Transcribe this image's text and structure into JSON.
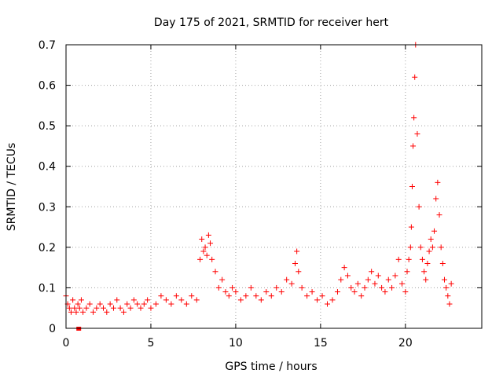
{
  "chart_data": {
    "type": "scatter",
    "title": "Day 175 of 2021, SRMTID for receiver hert",
    "xlabel": "GPS time / hours",
    "ylabel": "SRMTID / TECUs",
    "xlim": [
      0,
      24.5
    ],
    "ylim": [
      0,
      0.7
    ],
    "xticks": [
      0,
      5,
      10,
      15,
      20
    ],
    "yticks": [
      0,
      0.1,
      0.2,
      0.3,
      0.4,
      0.5,
      0.6,
      0.7
    ],
    "xtick_labels": [
      "0",
      "5",
      "10",
      "15",
      "20"
    ],
    "ytick_labels": [
      "0",
      "0.1",
      "0.2",
      "0.3",
      "0.4",
      "0.5",
      "0.6",
      "0.7"
    ],
    "grid": true,
    "marker": "+",
    "series": [
      {
        "name": "SRMTID",
        "color": "#ff0000",
        "x": [
          0.0,
          0.1,
          0.2,
          0.3,
          0.4,
          0.5,
          0.6,
          0.7,
          0.8,
          0.9,
          1.0,
          1.2,
          1.4,
          1.6,
          1.8,
          2.0,
          2.2,
          2.4,
          2.6,
          2.8,
          3.0,
          3.2,
          3.4,
          3.6,
          3.8,
          4.0,
          4.2,
          4.4,
          4.6,
          4.8,
          5.0,
          5.3,
          5.6,
          5.9,
          6.2,
          6.5,
          6.8,
          7.1,
          7.4,
          7.7,
          7.9,
          8.0,
          8.1,
          8.2,
          8.3,
          8.4,
          8.5,
          8.6,
          8.8,
          9.0,
          9.2,
          9.4,
          9.6,
          9.8,
          10.0,
          10.3,
          10.6,
          10.9,
          11.2,
          11.5,
          11.8,
          12.1,
          12.4,
          12.7,
          13.0,
          13.3,
          13.5,
          13.6,
          13.7,
          13.9,
          14.2,
          14.5,
          14.8,
          15.1,
          15.4,
          15.7,
          16.0,
          16.2,
          16.4,
          16.6,
          16.8,
          17.0,
          17.2,
          17.4,
          17.6,
          17.8,
          18.0,
          18.2,
          18.4,
          18.6,
          18.8,
          19.0,
          19.2,
          19.4,
          19.6,
          19.8,
          20.0,
          20.1,
          20.2,
          20.3,
          20.35,
          20.4,
          20.45,
          20.5,
          20.55,
          20.6,
          20.7,
          20.8,
          20.9,
          21.0,
          21.1,
          21.2,
          21.3,
          21.4,
          21.5,
          21.6,
          21.7,
          21.8,
          21.9,
          22.0,
          22.1,
          22.2,
          22.3,
          22.4,
          22.5,
          22.6,
          22.7
        ],
        "y": [
          0.08,
          0.06,
          0.05,
          0.04,
          0.07,
          0.05,
          0.04,
          0.06,
          0.05,
          0.07,
          0.04,
          0.05,
          0.06,
          0.04,
          0.05,
          0.06,
          0.05,
          0.04,
          0.06,
          0.05,
          0.07,
          0.05,
          0.04,
          0.06,
          0.05,
          0.07,
          0.06,
          0.05,
          0.06,
          0.07,
          0.05,
          0.06,
          0.08,
          0.07,
          0.06,
          0.08,
          0.07,
          0.06,
          0.08,
          0.07,
          0.17,
          0.22,
          0.19,
          0.2,
          0.18,
          0.23,
          0.21,
          0.17,
          0.14,
          0.1,
          0.12,
          0.09,
          0.08,
          0.1,
          0.09,
          0.07,
          0.08,
          0.1,
          0.08,
          0.07,
          0.09,
          0.08,
          0.1,
          0.09,
          0.12,
          0.11,
          0.16,
          0.19,
          0.14,
          0.1,
          0.08,
          0.09,
          0.07,
          0.08,
          0.06,
          0.07,
          0.09,
          0.12,
          0.15,
          0.13,
          0.1,
          0.09,
          0.11,
          0.08,
          0.1,
          0.12,
          0.14,
          0.11,
          0.13,
          0.1,
          0.09,
          0.12,
          0.1,
          0.13,
          0.17,
          0.11,
          0.09,
          0.14,
          0.17,
          0.2,
          0.25,
          0.35,
          0.45,
          0.52,
          0.62,
          0.7,
          0.48,
          0.3,
          0.2,
          0.17,
          0.14,
          0.12,
          0.16,
          0.19,
          0.22,
          0.2,
          0.24,
          0.32,
          0.36,
          0.28,
          0.2,
          0.16,
          0.12,
          0.1,
          0.08,
          0.06,
          0.11
        ]
      }
    ],
    "outlier_marker": {
      "x": 0.75,
      "y": 0.0
    }
  }
}
